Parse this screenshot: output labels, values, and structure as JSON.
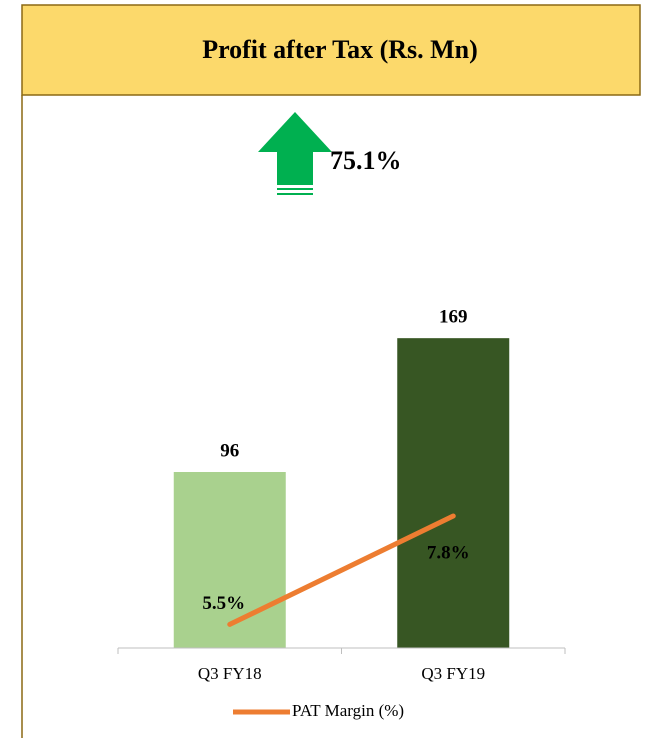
{
  "chart_data": {
    "type": "bar",
    "title": "Profit after Tax (Rs. Mn)",
    "annotation": "75.1%",
    "categories": [
      "Q3 FY18",
      "Q3 FY19"
    ],
    "series": [
      {
        "type": "bar",
        "colors": [
          "#a9d18e",
          "#375623"
        ],
        "values": [
          96,
          169
        ]
      },
      {
        "type": "line",
        "name": "PAT Margin (%)",
        "color": "#ed7d31",
        "axis": "y2",
        "values": [
          5.5,
          7.8
        ],
        "value_labels": [
          "5.5%",
          "7.8%"
        ]
      }
    ],
    "ylim": [
      0,
      180
    ],
    "y2lim": [
      5,
      12
    ],
    "legend": "bottom"
  }
}
